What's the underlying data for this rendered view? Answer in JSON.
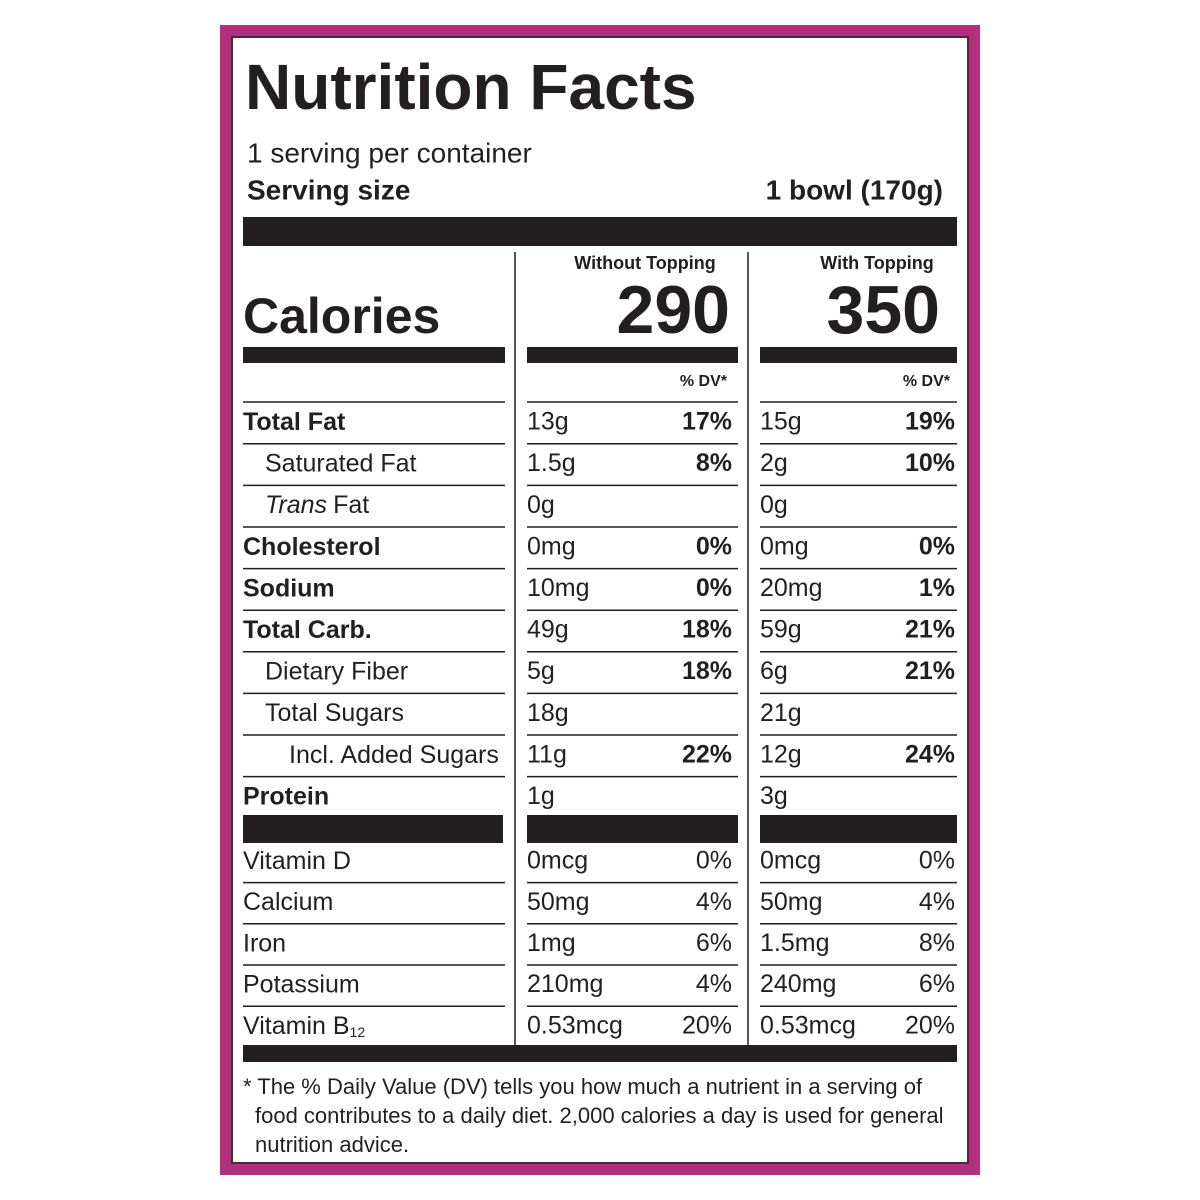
{
  "title": "Nutrition Facts",
  "servings": "1 serving per container",
  "serving_size": {
    "label": "Serving size",
    "value": "1 bowl (170g)"
  },
  "calories": {
    "label": "Calories",
    "columns": [
      {
        "heading": "Without Topping",
        "value": "290"
      },
      {
        "heading": "With Topping",
        "value": "350"
      }
    ]
  },
  "dv_header": "% DV*",
  "nutrients": [
    {
      "name": "Total Fat",
      "columns": [
        {
          "amount": "13g",
          "dv": "17%"
        },
        {
          "amount": "15g",
          "dv": "19%"
        }
      ],
      "sub": [
        {
          "name": "Saturated Fat",
          "columns": [
            {
              "amount": "1.5g",
              "dv": "8%"
            },
            {
              "amount": "2g",
              "dv": "10%"
            }
          ]
        },
        {
          "name_italic": "Trans",
          "name": "Fat",
          "columns": [
            {
              "amount": "0g"
            },
            {
              "amount": "0g"
            }
          ]
        }
      ]
    },
    {
      "name": "Cholesterol",
      "columns": [
        {
          "amount": "0mg",
          "dv": "0%"
        },
        {
          "amount": "0mg",
          "dv": "0%"
        }
      ]
    },
    {
      "name": "Sodium",
      "columns": [
        {
          "amount": "10mg",
          "dv": "0%"
        },
        {
          "amount": "20mg",
          "dv": "1%"
        }
      ]
    },
    {
      "name": "Total Carb.",
      "columns": [
        {
          "amount": "49g",
          "dv": "18%"
        },
        {
          "amount": "59g",
          "dv": "21%"
        }
      ],
      "sub": [
        {
          "name": "Dietary Fiber",
          "columns": [
            {
              "amount": "5g",
              "dv": "18%"
            },
            {
              "amount": "6g",
              "dv": "21%"
            }
          ]
        },
        {
          "name": "Total Sugars",
          "columns": [
            {
              "amount": "18g"
            },
            {
              "amount": "21g"
            }
          ],
          "sub": [
            {
              "name": "Incl. Added Sugars",
              "columns": [
                {
                  "amount": "11g",
                  "dv": "22%"
                },
                {
                  "amount": "12g",
                  "dv": "24%"
                }
              ]
            }
          ]
        }
      ]
    },
    {
      "name": "Protein",
      "columns": [
        {
          "amount": "1g"
        },
        {
          "amount": "3g"
        }
      ]
    }
  ],
  "vitamins": [
    {
      "name": "Vitamin D",
      "columns": [
        {
          "amount": "0mcg",
          "dv": "0%"
        },
        {
          "amount": "0mcg",
          "dv": "0%"
        }
      ]
    },
    {
      "name": "Calcium",
      "columns": [
        {
          "amount": "50mg",
          "dv": "4%"
        },
        {
          "amount": "50mg",
          "dv": "4%"
        }
      ]
    },
    {
      "name": "Iron",
      "columns": [
        {
          "amount": "1mg",
          "dv": "6%"
        },
        {
          "amount": "1.5mg",
          "dv": "8%"
        }
      ]
    },
    {
      "name": "Potassium",
      "columns": [
        {
          "amount": "210mg",
          "dv": "4%"
        },
        {
          "amount": "240mg",
          "dv": "6%"
        }
      ]
    },
    {
      "name": "Vitamin B",
      "subscript": "12",
      "columns": [
        {
          "amount": "0.53mcg",
          "dv": "20%"
        },
        {
          "amount": "0.53mcg",
          "dv": "20%"
        }
      ]
    }
  ],
  "footnote": "* The % Daily Value (DV) tells you how much a nutrient in a serving of food contributes to a daily diet. 2,000 calories a day is used for general nutrition advice."
}
